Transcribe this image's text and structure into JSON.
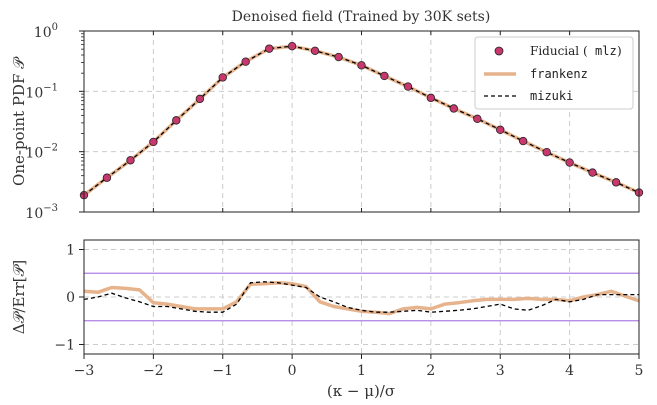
{
  "colors": {
    "fiducial_marker": "#c8386e",
    "frankenz_line": "#e6b38c",
    "mizuki_line": "#000000",
    "threshold_line": "#b07fe6",
    "grid": "#cccccc"
  },
  "chart_data": [
    {
      "type": "line",
      "title": "Denoised field (Trained by 30K sets)",
      "ylabel": "One-point PDF 𝒫",
      "xlabel": "",
      "xlim": [
        -3,
        5
      ],
      "ylim": [
        0.001,
        1
      ],
      "yscale": "log",
      "grid": true,
      "legend_position": "top-right",
      "yticks": [
        "10",
        "10",
        "10",
        "10"
      ],
      "ytick_exponents": [
        "−3",
        "−2",
        "−1",
        "0"
      ],
      "ytick_values": [
        0.001,
        0.01,
        0.1,
        1
      ],
      "legend": {
        "fiducial_name": "Fiducial (",
        "fiducial_code": "mlz",
        "fiducial_close": ")",
        "frankenz": "frankenz",
        "mizuki": "mizuki"
      },
      "series": [
        {
          "name": "Fiducial (mlz)",
          "style": "markers",
          "x": [
            -3.0,
            -2.67,
            -2.33,
            -2.0,
            -1.67,
            -1.33,
            -1.0,
            -0.67,
            -0.33,
            0.0,
            0.33,
            0.67,
            1.0,
            1.33,
            1.67,
            2.0,
            2.33,
            2.67,
            3.0,
            3.33,
            3.67,
            4.0,
            4.33,
            4.67,
            5.0
          ],
          "y": [
            0.0019,
            0.0037,
            0.0072,
            0.0145,
            0.033,
            0.075,
            0.17,
            0.31,
            0.51,
            0.56,
            0.47,
            0.37,
            0.27,
            0.18,
            0.12,
            0.078,
            0.052,
            0.035,
            0.023,
            0.015,
            0.0098,
            0.0066,
            0.0045,
            0.0031,
            0.0021
          ]
        },
        {
          "name": "frankenz",
          "style": "solid",
          "x": [
            -3.0,
            -2.67,
            -2.33,
            -2.0,
            -1.67,
            -1.33,
            -1.0,
            -0.67,
            -0.33,
            0.0,
            0.33,
            0.67,
            1.0,
            1.33,
            1.67,
            2.0,
            2.33,
            2.67,
            3.0,
            3.33,
            3.67,
            4.0,
            4.33,
            4.67,
            5.0
          ],
          "y": [
            0.0019,
            0.0037,
            0.0072,
            0.0145,
            0.033,
            0.075,
            0.17,
            0.31,
            0.51,
            0.56,
            0.47,
            0.37,
            0.27,
            0.18,
            0.12,
            0.078,
            0.052,
            0.035,
            0.023,
            0.015,
            0.0098,
            0.0066,
            0.0045,
            0.0031,
            0.0021
          ]
        },
        {
          "name": "mizuki",
          "style": "dashed",
          "x": [
            -3.0,
            -2.67,
            -2.33,
            -2.0,
            -1.67,
            -1.33,
            -1.0,
            -0.67,
            -0.33,
            0.0,
            0.33,
            0.67,
            1.0,
            1.33,
            1.67,
            2.0,
            2.33,
            2.67,
            3.0,
            3.33,
            3.67,
            4.0,
            4.33,
            4.67,
            5.0
          ],
          "y": [
            0.0019,
            0.0037,
            0.0072,
            0.0145,
            0.033,
            0.075,
            0.17,
            0.31,
            0.51,
            0.56,
            0.47,
            0.37,
            0.27,
            0.18,
            0.12,
            0.078,
            0.052,
            0.035,
            0.023,
            0.015,
            0.0098,
            0.0066,
            0.0045,
            0.0031,
            0.0021
          ]
        }
      ]
    },
    {
      "type": "line",
      "title": "",
      "xlabel": "(κ − μ)/σ",
      "ylabel": "Δ𝒫/Err[𝒫]",
      "xlim": [
        -3,
        5
      ],
      "ylim": [
        -1.2,
        1.2
      ],
      "grid": true,
      "xticks": [
        "−3",
        "−2",
        "−1",
        "0",
        "1",
        "2",
        "3",
        "4",
        "5"
      ],
      "xtick_values": [
        -3,
        -2,
        -1,
        0,
        1,
        2,
        3,
        4,
        5
      ],
      "yticks": [
        "−1",
        "0",
        "1"
      ],
      "ytick_values": [
        -1,
        0,
        1
      ],
      "reference_lines": [
        0.5,
        -0.5
      ],
      "series": [
        {
          "name": "frankenz",
          "style": "solid",
          "x": [
            -3.0,
            -2.8,
            -2.6,
            -2.4,
            -2.2,
            -2.0,
            -1.8,
            -1.6,
            -1.4,
            -1.2,
            -1.0,
            -0.8,
            -0.6,
            -0.4,
            -0.2,
            0.0,
            0.2,
            0.4,
            0.6,
            0.8,
            1.0,
            1.2,
            1.4,
            1.6,
            1.8,
            2.0,
            2.2,
            2.4,
            2.6,
            2.8,
            3.0,
            3.2,
            3.4,
            3.6,
            3.8,
            4.0,
            4.2,
            4.4,
            4.6,
            4.8,
            5.0
          ],
          "y": [
            0.12,
            0.1,
            0.2,
            0.18,
            0.15,
            -0.12,
            -0.15,
            -0.2,
            -0.25,
            -0.25,
            -0.25,
            -0.1,
            0.27,
            0.28,
            0.3,
            0.28,
            0.22,
            -0.1,
            -0.2,
            -0.25,
            -0.3,
            -0.32,
            -0.35,
            -0.25,
            -0.22,
            -0.25,
            -0.15,
            -0.12,
            -0.08,
            -0.05,
            -0.05,
            -0.05,
            -0.03,
            -0.05,
            -0.05,
            -0.08,
            0.0,
            0.05,
            0.12,
            0.02,
            -0.08
          ]
        },
        {
          "name": "mizuki",
          "style": "dashed",
          "x": [
            -3.0,
            -2.8,
            -2.6,
            -2.4,
            -2.2,
            -2.0,
            -1.8,
            -1.6,
            -1.4,
            -1.2,
            -1.0,
            -0.8,
            -0.6,
            -0.4,
            -0.2,
            0.0,
            0.2,
            0.4,
            0.6,
            0.8,
            1.0,
            1.2,
            1.4,
            1.6,
            1.8,
            2.0,
            2.2,
            2.4,
            2.6,
            2.8,
            3.0,
            3.2,
            3.4,
            3.6,
            3.8,
            4.0,
            4.2,
            4.4,
            4.6,
            4.8,
            5.0
          ],
          "y": [
            -0.05,
            0.0,
            0.08,
            -0.02,
            -0.1,
            -0.2,
            -0.2,
            -0.25,
            -0.3,
            -0.32,
            -0.32,
            -0.15,
            0.3,
            0.32,
            0.3,
            0.25,
            0.2,
            0.0,
            -0.1,
            -0.22,
            -0.28,
            -0.32,
            -0.32,
            -0.3,
            -0.28,
            -0.32,
            -0.3,
            -0.28,
            -0.25,
            -0.2,
            -0.15,
            -0.25,
            -0.28,
            -0.18,
            -0.05,
            -0.1,
            -0.05,
            0.05,
            0.05,
            0.05,
            0.05
          ]
        }
      ]
    }
  ]
}
